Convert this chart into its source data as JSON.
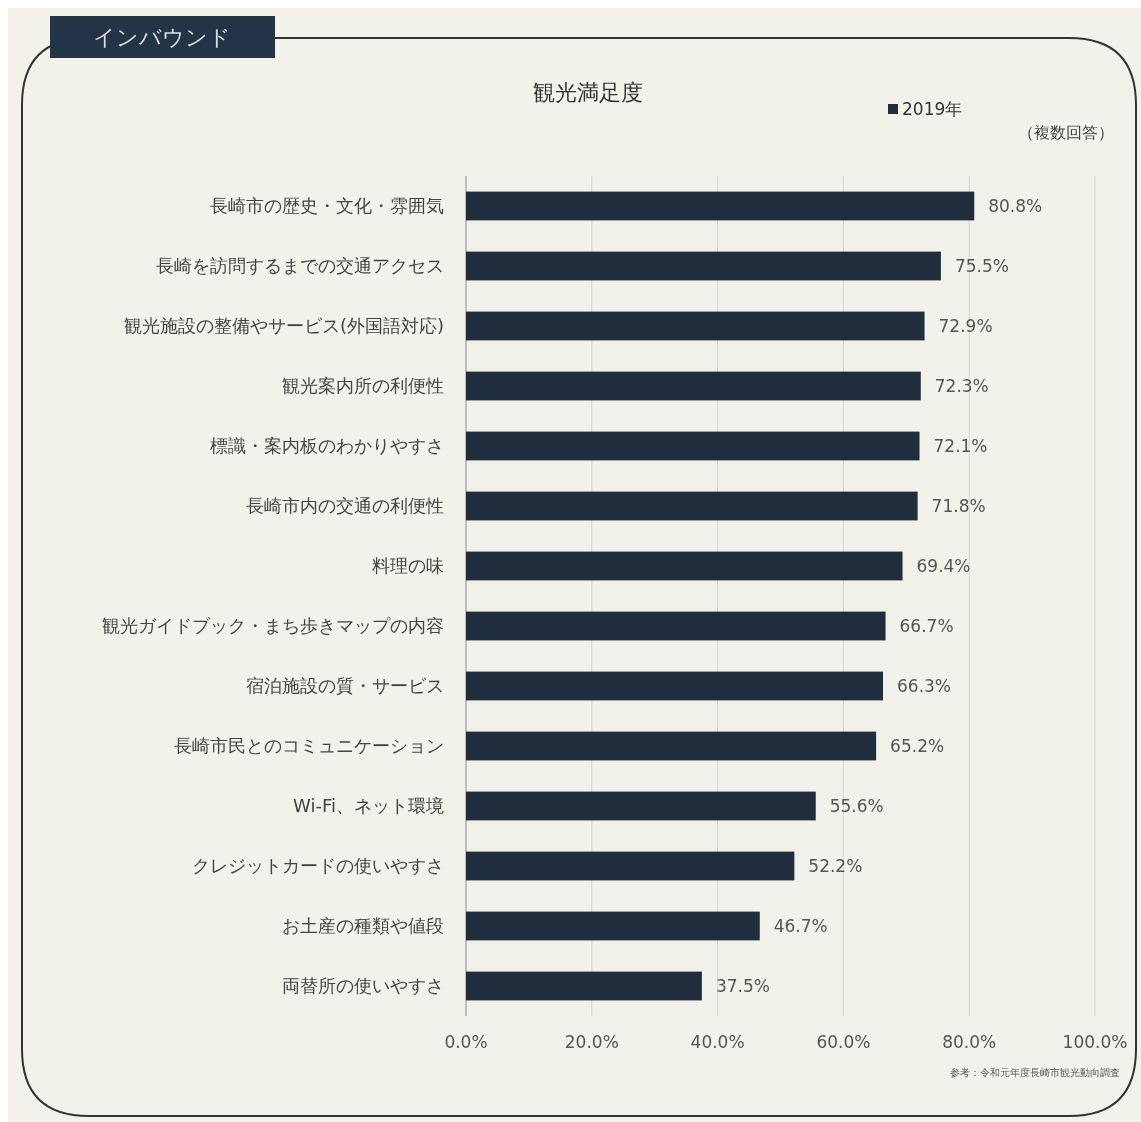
{
  "chart_data": {
    "type": "bar",
    "orientation": "horizontal",
    "title": "観光満足度",
    "categories": [
      "長崎市の歴史・文化・雰囲気",
      "長崎を訪問するまでの交通アクセス",
      "観光施設の整備やサービス(外国語対応)",
      "観光案内所の利便性",
      "標識・案内板のわかりやすさ",
      "長崎市内の交通の利便性",
      "料理の味",
      "観光ガイドブック・まち歩きマップの内容",
      "宿泊施設の質・サービス",
      "長崎市民とのコミュニケーション",
      "Wi-Fi、ネット環境",
      "クレジットカードの使いやすさ",
      "お土産の種類や値段",
      "両替所の使いやすさ"
    ],
    "series": [
      {
        "name": "2019年",
        "color": "#1f2d3d",
        "values": [
          80.8,
          75.5,
          72.9,
          72.3,
          72.1,
          71.8,
          69.4,
          66.7,
          66.3,
          65.2,
          55.6,
          52.2,
          46.7,
          37.5
        ],
        "value_labels": [
          "80.8%",
          "75.5%",
          "72.9%",
          "72.3%",
          "72.1%",
          "71.8%",
          "69.4%",
          "66.7%",
          "66.3%",
          "65.2%",
          "55.6%",
          "52.2%",
          "46.7%",
          "37.5%"
        ]
      }
    ],
    "xlim": [
      0,
      100
    ],
    "xticks": [
      {
        "value": 0,
        "label": "0.0%"
      },
      {
        "value": 20,
        "label": "20.0%"
      },
      {
        "value": 40,
        "label": "40.0%"
      },
      {
        "value": 60,
        "label": "60.0%"
      },
      {
        "value": 80,
        "label": "80.0%"
      },
      {
        "value": 100,
        "label": "100.0%"
      }
    ],
    "grid": "x",
    "legend": "top right",
    "annotations": [
      "インバウンド",
      "（複数回答）",
      "参考：令和元年度長崎市観光動向調査"
    ]
  }
}
